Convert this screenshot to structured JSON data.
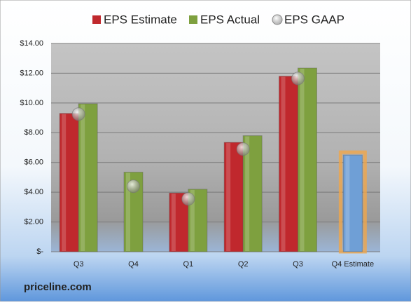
{
  "chart_data": {
    "type": "bar",
    "categories": [
      "Q3",
      "Q4",
      "Q1",
      "Q2",
      "Q3",
      "Q4 Estimate"
    ],
    "series": [
      {
        "name": "EPS Estimate",
        "color": "#c0282d",
        "point_colors": [
          null,
          null,
          null,
          null,
          null,
          "#6f9fd6"
        ],
        "values": [
          9.3,
          null,
          3.95,
          7.35,
          11.8,
          6.5
        ]
      },
      {
        "name": "EPS Actual",
        "color": "#7ea03f",
        "values": [
          9.95,
          5.35,
          4.2,
          7.8,
          12.35,
          null
        ]
      },
      {
        "name": "EPS GAAP",
        "type": "scatter",
        "color": "#9a9a9a",
        "values": [
          9.25,
          4.4,
          3.55,
          6.9,
          11.65,
          null
        ]
      }
    ],
    "ylim": [
      0,
      14
    ],
    "yticks": [
      {
        "value": 0,
        "label": "$-"
      },
      {
        "value": 2,
        "label": "$2.00"
      },
      {
        "value": 4,
        "label": "$4.00"
      },
      {
        "value": 6,
        "label": "$6.00"
      },
      {
        "value": 8,
        "label": "$8.00"
      },
      {
        "value": 10,
        "label": "$10.00"
      },
      {
        "value": 12,
        "label": "$12.00"
      },
      {
        "value": 14,
        "label": "$14.00"
      }
    ],
    "grid": true,
    "legend": "top",
    "source": "priceline.com"
  }
}
